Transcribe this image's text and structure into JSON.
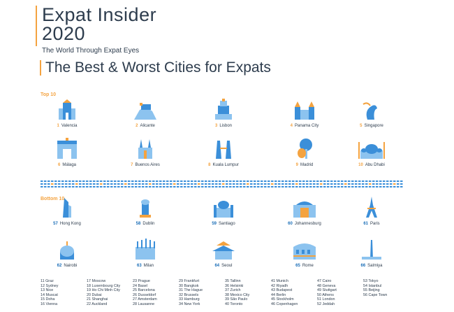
{
  "header": {
    "brand_title": "Expat Insider",
    "brand_year": "2020",
    "tagline": "The World Through Expat Eyes",
    "main_title": "The Best & Worst Cities for Expats"
  },
  "sections": {
    "top_label": "Top 10",
    "bottom_label": "Bottom 10"
  },
  "colors": {
    "accent": "#f4a340",
    "blue": "#3b8fd9",
    "light_blue": "#8cc3ef",
    "dark_blue": "#1c6fb8",
    "text": "#2d3c4d"
  },
  "top10": [
    {
      "rank": "1",
      "name": "Valencia",
      "icon": "cathedral-icon"
    },
    {
      "rank": "2",
      "name": "Alicante",
      "icon": "castle-hill-icon"
    },
    {
      "rank": "3",
      "name": "Lisbon",
      "icon": "belem-tower-icon"
    },
    {
      "rank": "4",
      "name": "Panama City",
      "icon": "church-icon"
    },
    {
      "rank": "5",
      "name": "Singapore",
      "icon": "merlion-icon"
    },
    {
      "rank": "6",
      "name": "Málaga",
      "icon": "gate-icon"
    },
    {
      "rank": "7",
      "name": "Buenos Aires",
      "icon": "basilica-icon"
    },
    {
      "rank": "8",
      "name": "Kuala Lumpur",
      "icon": "petronas-towers-icon"
    },
    {
      "rank": "9",
      "name": "Madrid",
      "icon": "bear-tree-icon"
    },
    {
      "rank": "10",
      "name": "Abu Dhabi",
      "icon": "mosque-icon"
    }
  ],
  "bottom10": [
    {
      "rank": "57",
      "name": "Hong Kong",
      "icon": "skyscraper-icon"
    },
    {
      "rank": "58",
      "name": "Dublin",
      "icon": "lighthouse-icon"
    },
    {
      "rank": "59",
      "name": "Santiago",
      "icon": "pavilion-icon"
    },
    {
      "rank": "60",
      "name": "Johannesburg",
      "icon": "city-hall-icon"
    },
    {
      "rank": "61",
      "name": "Paris",
      "icon": "eiffel-tower-icon"
    },
    {
      "rank": "62",
      "name": "Nairobi",
      "icon": "dome-icon"
    },
    {
      "rank": "63",
      "name": "Milan",
      "icon": "duomo-icon"
    },
    {
      "rank": "64",
      "name": "Seoul",
      "icon": "pagoda-gate-icon"
    },
    {
      "rank": "65",
      "name": "Rome",
      "icon": "colosseum-icon"
    },
    {
      "rank": "66",
      "name": "Salmiya",
      "icon": "obelisk-icon"
    }
  ],
  "full_list": [
    [
      "11  Graz",
      "12  Sydney",
      "13  Nice",
      "14  Muscat",
      "15  Doha",
      "16  Vienna"
    ],
    [
      "17  Moscow",
      "18  Luxembourg City",
      "19  Ho Chi Minh City",
      "20  Dubai",
      "21  Shanghai",
      "22  Auckland"
    ],
    [
      "23  Prague",
      "24  Basel",
      "25  Barcelona",
      "26  Dusseldorf",
      "27  Amsterdam",
      "28  Lausanne"
    ],
    [
      "29  Frankfurt",
      "30  Bangkok",
      "31  The Hague",
      "32  Brussels",
      "33  Hamburg",
      "34  New York"
    ],
    [
      "35  Tallinn",
      "36  Helsinki",
      "37  Zurich",
      "38  Mexico City",
      "39  São Paulo",
      "40  Toronto"
    ],
    [
      "41  Munich",
      "42  Riyadh",
      "43  Budapest",
      "44  Berlin",
      "45  Stockholm",
      "46  Copenhagen"
    ],
    [
      "47  Cairo",
      "48  Geneva",
      "49  Stuttgart",
      "50  Athens",
      "51  London",
      "52  Jeddah"
    ],
    [
      "53  Tokyo",
      "54  Istanbul",
      "55  Beijing",
      "56  Cape Town"
    ]
  ]
}
